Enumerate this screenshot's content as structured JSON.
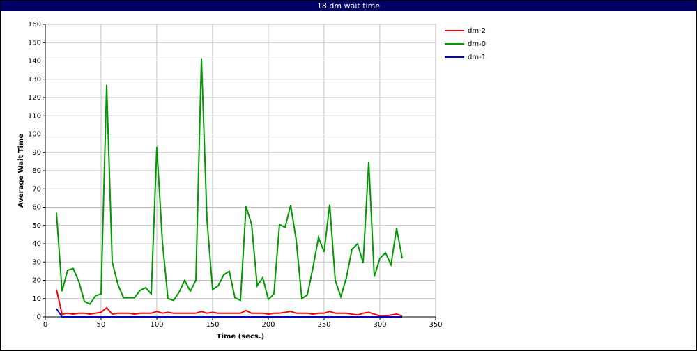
{
  "chart_data": {
    "type": "line",
    "title": "18 dm wait time",
    "xlabel": "Time (secs.)",
    "ylabel": "Average Wait Time",
    "x": [
      10,
      15,
      20,
      25,
      30,
      35,
      40,
      45,
      50,
      55,
      60,
      65,
      70,
      75,
      80,
      85,
      90,
      95,
      100,
      105,
      110,
      115,
      120,
      125,
      130,
      135,
      140,
      145,
      150,
      155,
      160,
      165,
      170,
      175,
      180,
      185,
      190,
      195,
      200,
      205,
      210,
      215,
      220,
      225,
      230,
      235,
      240,
      245,
      250,
      255,
      260,
      265,
      270,
      275,
      280,
      285,
      290,
      295,
      300,
      305,
      310,
      315,
      320
    ],
    "series": [
      {
        "name": "dm-2",
        "color": "#ff0000",
        "values": [
          15,
          1.5,
          2,
          1.5,
          2,
          2,
          1.5,
          2,
          2.5,
          5,
          1.5,
          2,
          2,
          2,
          1.5,
          2,
          2,
          2,
          3,
          2,
          2.5,
          2,
          2,
          2,
          2,
          2,
          3,
          2,
          2.5,
          2,
          2,
          2,
          2,
          2,
          3.5,
          2,
          2,
          2,
          1.5,
          2,
          2,
          2.5,
          3,
          2,
          2,
          2,
          1.5,
          2,
          2,
          3,
          2,
          2,
          2,
          1.5,
          1,
          2,
          2.5,
          1.5,
          0.5,
          0.5,
          1,
          1.5,
          0.5
        ]
      },
      {
        "name": "dm-0",
        "color": "#009900",
        "values": [
          57,
          14,
          25.5,
          26.5,
          19.5,
          8.5,
          7,
          11.5,
          12.5,
          127,
          30,
          18,
          10.5,
          10.5,
          10.5,
          14.5,
          16,
          12.5,
          93,
          41,
          10,
          9,
          13.5,
          20,
          14,
          20,
          141.5,
          53,
          15,
          17,
          23,
          25,
          10.5,
          9,
          60.5,
          50.5,
          17,
          21.5,
          9.5,
          12.5,
          50.5,
          49,
          61,
          42,
          10,
          12,
          27,
          43.5,
          35.5,
          61.5,
          20,
          11,
          21.5,
          37,
          40,
          29.5,
          85,
          22,
          32,
          35,
          28.5,
          48.5,
          32
        ]
      },
      {
        "name": "dm-1",
        "color": "#0000cc",
        "values": [
          4.5,
          0,
          0,
          0,
          0,
          0,
          0,
          0,
          0,
          0,
          0,
          0,
          0,
          0,
          0,
          0,
          0,
          0,
          0,
          0,
          0,
          0,
          0,
          0,
          0,
          0,
          0,
          0,
          0,
          0,
          0,
          0,
          0,
          0,
          0,
          0,
          0,
          0,
          0,
          0,
          0,
          0,
          0,
          0,
          0,
          0,
          0,
          0,
          0,
          0,
          0,
          0,
          0,
          0,
          0,
          0,
          0,
          0,
          0,
          0,
          0,
          0,
          0
        ]
      }
    ],
    "xlim": [
      0,
      350
    ],
    "xticks": [
      0,
      50,
      100,
      150,
      200,
      250,
      300,
      350
    ],
    "ylim": [
      0,
      160
    ],
    "yticks": [
      0,
      10,
      20,
      30,
      40,
      50,
      60,
      70,
      80,
      90,
      100,
      110,
      120,
      130,
      140,
      150,
      160
    ],
    "grid": true,
    "legend": "upper-right"
  }
}
